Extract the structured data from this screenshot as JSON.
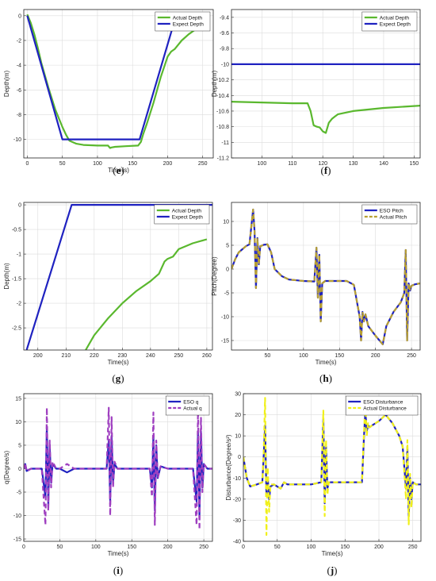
{
  "chart_data": [
    {
      "type": "line",
      "caption": "e",
      "xlabel": "Time(s)",
      "ylabel": "Depth(m)",
      "xlim": [
        -5,
        265
      ],
      "ylim": [
        -11.5,
        0.5
      ],
      "xticks": [
        0,
        50,
        100,
        150,
        200,
        250
      ],
      "yticks": [
        -10,
        -8,
        -6,
        -4,
        -2,
        0
      ],
      "legend_position": "top-right",
      "series": [
        {
          "name": "Actual Depth",
          "color": "#5ab82e",
          "dash": "",
          "x": [
            0,
            5,
            10,
            15,
            20,
            30,
            40,
            50,
            55,
            60,
            70,
            80,
            100,
            115,
            118,
            120,
            125,
            140,
            158,
            162,
            165,
            170,
            180,
            190,
            200,
            205,
            210,
            220,
            230,
            240,
            250,
            258
          ],
          "y": [
            0.1,
            -0.6,
            -1.5,
            -2.6,
            -3.8,
            -5.8,
            -7.6,
            -9.0,
            -9.6,
            -10.1,
            -10.35,
            -10.45,
            -10.5,
            -10.5,
            -10.7,
            -10.65,
            -10.6,
            -10.55,
            -10.5,
            -10.2,
            -9.6,
            -8.8,
            -7.0,
            -5.0,
            -3.3,
            -2.9,
            -2.7,
            -2.0,
            -1.5,
            -1.1,
            -0.8,
            -0.6
          ]
        },
        {
          "name": "Expect Depth",
          "color": "#1f22c0",
          "dash": "",
          "x": [
            0,
            50,
            160,
            212,
            260
          ],
          "y": [
            0,
            -10,
            -10,
            0,
            0
          ]
        }
      ]
    },
    {
      "type": "line",
      "caption": "f",
      "xlabel": "",
      "ylabel": "Depth(m)",
      "xlim": [
        90,
        152
      ],
      "ylim": [
        -11.2,
        -9.3
      ],
      "xticks": [
        100,
        110,
        120,
        130,
        140,
        150
      ],
      "yticks": [
        -11.2,
        -11,
        -10.8,
        -10.6,
        -10.4,
        -10.2,
        -10,
        -9.8,
        -9.6,
        -9.4
      ],
      "legend_position": "top-right",
      "series": [
        {
          "name": "Actual Depth",
          "color": "#5ab82e",
          "dash": "",
          "x": [
            90,
            100,
            110,
            115,
            116,
            117,
            118,
            119,
            120,
            121,
            122,
            123,
            124,
            125,
            130,
            140,
            152
          ],
          "y": [
            -10.48,
            -10.49,
            -10.5,
            -10.5,
            -10.6,
            -10.78,
            -10.8,
            -10.81,
            -10.86,
            -10.88,
            -10.75,
            -10.7,
            -10.67,
            -10.64,
            -10.6,
            -10.56,
            -10.53
          ]
        },
        {
          "name": "Expect Depth",
          "color": "#1f22c0",
          "dash": "",
          "x": [
            90,
            152
          ],
          "y": [
            -10,
            -10
          ]
        }
      ]
    },
    {
      "type": "line",
      "caption": "g",
      "xlabel": "Time(s)",
      "ylabel": "Depth(m)",
      "xlim": [
        195,
        262
      ],
      "ylim": [
        -2.95,
        0.05
      ],
      "xticks": [
        200,
        210,
        220,
        230,
        240,
        250,
        260
      ],
      "yticks": [
        -2.5,
        -2,
        -1.5,
        -1,
        -0.5,
        0
      ],
      "legend_position": "top-right",
      "series": [
        {
          "name": "Actual Depth",
          "color": "#5ab82e",
          "dash": "",
          "x": [
            217,
            220,
            225,
            230,
            235,
            240,
            243,
            245,
            246,
            248,
            250,
            255,
            260
          ],
          "y": [
            -2.95,
            -2.65,
            -2.3,
            -2.0,
            -1.75,
            -1.55,
            -1.4,
            -1.15,
            -1.1,
            -1.05,
            -0.9,
            -0.78,
            -0.7
          ]
        },
        {
          "name": "Expect Depth",
          "color": "#1f22c0",
          "dash": "",
          "x": [
            196,
            212,
            262
          ],
          "y": [
            -2.95,
            0,
            0
          ]
        }
      ]
    },
    {
      "type": "line",
      "caption": "h",
      "xlabel": "Time(s)",
      "ylabel": "Pitch(Degree)",
      "xlim": [
        0,
        262
      ],
      "ylim": [
        -17,
        14
      ],
      "xticks": [
        50,
        100,
        150,
        200,
        250
      ],
      "yticks": [
        -15,
        -10,
        -5,
        0,
        5,
        10
      ],
      "legend_position": "top-right",
      "series": [
        {
          "name": "ESO Pitch",
          "color": "#1f22c0",
          "dash": "",
          "x": [
            0,
            5,
            10,
            20,
            25,
            30,
            32,
            34,
            36,
            38,
            40,
            45,
            50,
            55,
            60,
            70,
            80,
            100,
            115,
            118,
            120,
            122,
            124,
            126,
            130,
            140,
            150,
            160,
            170,
            178,
            180,
            182,
            184,
            186,
            190,
            200,
            210,
            215,
            225,
            235,
            240,
            242,
            244,
            246,
            248,
            250,
            255,
            262
          ],
          "y": [
            0,
            2,
            3.5,
            4.8,
            5.2,
            12.5,
            8,
            -4,
            6.5,
            1,
            4.8,
            5.1,
            5.2,
            3.5,
            0,
            -1.5,
            -2.2,
            -2.5,
            -2.6,
            4.5,
            -6,
            3,
            -11,
            -3,
            -2.5,
            -2.5,
            -2.5,
            -2.5,
            -3.3,
            -10,
            -15,
            -9,
            -11,
            -9.5,
            -12,
            -14,
            -15.8,
            -12,
            -9,
            -7,
            -5,
            4,
            -15,
            -3,
            -4.5,
            -3.5,
            -3.2,
            -3
          ]
        },
        {
          "name": "Actual Pitch",
          "color": "#b8a032",
          "dash": "6,4",
          "x": [
            0,
            5,
            10,
            20,
            25,
            30,
            32,
            34,
            36,
            38,
            40,
            45,
            50,
            55,
            60,
            70,
            80,
            100,
            115,
            118,
            120,
            122,
            124,
            126,
            130,
            140,
            150,
            160,
            170,
            178,
            180,
            182,
            184,
            186,
            190,
            200,
            210,
            215,
            225,
            235,
            240,
            242,
            244,
            246,
            248,
            250,
            255,
            262
          ],
          "y": [
            0,
            2,
            3.5,
            4.8,
            5.2,
            12.5,
            8,
            -4,
            6.5,
            1,
            4.8,
            5.1,
            5.2,
            3.5,
            0,
            -1.5,
            -2.2,
            -2.5,
            -2.6,
            4.5,
            -6,
            3,
            -11,
            -3,
            -2.5,
            -2.5,
            -2.5,
            -2.5,
            -3.3,
            -10,
            -15,
            -9,
            -11,
            -9.5,
            -12,
            -14,
            -15.8,
            -12,
            -9,
            -7,
            -5,
            4,
            -15,
            -3,
            -4.5,
            -3.5,
            -3.2,
            -3
          ]
        }
      ]
    },
    {
      "type": "line",
      "caption": "i",
      "xlabel": "Time(s)",
      "ylabel": "q(Degree/s)",
      "xlim": [
        0,
        262
      ],
      "ylim": [
        -15.5,
        16
      ],
      "xticks": [
        0,
        50,
        100,
        150,
        200,
        250
      ],
      "yticks": [
        -15,
        -10,
        -5,
        0,
        5,
        10,
        15
      ],
      "legend_position": "top-right",
      "series": [
        {
          "name": "ESO q",
          "color": "#1f22c0",
          "dash": "",
          "x": [
            0,
            2,
            4,
            10,
            25,
            30,
            32,
            34,
            36,
            38,
            40,
            45,
            50,
            60,
            70,
            80,
            100,
            115,
            118,
            120,
            122,
            124,
            126,
            130,
            160,
            175,
            178,
            180,
            182,
            184,
            186,
            190,
            200,
            230,
            235,
            240,
            242,
            244,
            246,
            248,
            250,
            255,
            262
          ],
          "y": [
            0,
            1,
            -0.5,
            0,
            0,
            -6,
            9,
            -8,
            5,
            -3,
            1,
            0,
            0,
            -0.8,
            0,
            0,
            0,
            0,
            6,
            -7,
            7,
            -3,
            1,
            0,
            0,
            0,
            -4,
            7,
            -9,
            5,
            -2,
            0.5,
            0,
            0,
            0,
            -7,
            8,
            -10,
            8,
            -4,
            1,
            0,
            0
          ]
        },
        {
          "name": "Actual q",
          "color": "#9f3fc0",
          "dash": "6,4",
          "x": [
            0,
            2,
            4,
            10,
            25,
            30,
            32,
            34,
            36,
            38,
            40,
            45,
            50,
            60,
            70,
            80,
            100,
            115,
            118,
            120,
            122,
            124,
            126,
            130,
            160,
            175,
            178,
            180,
            182,
            184,
            186,
            190,
            200,
            230,
            235,
            240,
            242,
            244,
            246,
            248,
            250,
            255,
            262
          ],
          "y": [
            0,
            1.2,
            -0.6,
            0,
            0,
            -12,
            13,
            -9,
            6,
            -4,
            1.5,
            0,
            0,
            1,
            0,
            0,
            0,
            0,
            13,
            -10,
            11,
            -4,
            1.5,
            0,
            0,
            0,
            -6,
            12,
            -12,
            6,
            -2,
            0.5,
            0,
            0,
            0,
            -12,
            13,
            -13,
            11,
            -5,
            1,
            0,
            0
          ]
        }
      ]
    },
    {
      "type": "line",
      "caption": "j",
      "xlabel": "Time(s)",
      "ylabel": "Disturbance(Degree/s²)",
      "xlim": [
        0,
        262
      ],
      "ylim": [
        -40,
        30
      ],
      "xticks": [
        0,
        50,
        100,
        150,
        200,
        250
      ],
      "yticks": [
        -40,
        -30,
        -20,
        -10,
        0,
        10,
        20,
        30
      ],
      "legend_position": "top-right",
      "series": [
        {
          "name": "ESO Disturbance",
          "color": "#1f22c0",
          "dash": "",
          "x": [
            0,
            5,
            10,
            20,
            28,
            30,
            32,
            34,
            36,
            38,
            40,
            45,
            50,
            55,
            60,
            65,
            70,
            80,
            100,
            115,
            118,
            120,
            122,
            124,
            126,
            130,
            150,
            170,
            175,
            178,
            180,
            182,
            184,
            186,
            190,
            200,
            210,
            220,
            230,
            235,
            240,
            242,
            244,
            246,
            248,
            250,
            255,
            262
          ],
          "y": [
            0,
            -10,
            -14,
            -13,
            -12,
            0,
            15,
            -18,
            -10,
            -20,
            -14,
            -13,
            -14,
            -15,
            -12,
            -13,
            -13,
            -13,
            -13,
            -12,
            18,
            -22,
            5,
            -15,
            -12,
            -12,
            -12,
            -12,
            -12,
            10,
            22,
            12,
            15,
            14,
            15,
            17,
            20,
            16,
            10,
            5,
            -15,
            5,
            -28,
            -10,
            -20,
            -12,
            -13,
            -13
          ]
        },
        {
          "name": "Actual Disturbance",
          "color": "#f0f01a",
          "dash": "6,4",
          "x": [
            0,
            5,
            10,
            20,
            28,
            30,
            32,
            34,
            36,
            38,
            40,
            45,
            50,
            55,
            60,
            65,
            70,
            80,
            100,
            115,
            118,
            120,
            122,
            124,
            126,
            130,
            150,
            170,
            175,
            178,
            180,
            182,
            184,
            186,
            190,
            200,
            210,
            220,
            230,
            235,
            240,
            242,
            244,
            246,
            248,
            250,
            255,
            262
          ],
          "y": [
            0,
            -10,
            -14,
            -13,
            -12,
            2,
            28,
            -37,
            -5,
            -26,
            -13,
            -13,
            -14,
            -15,
            -12,
            -13,
            -13,
            -13,
            -13,
            -12,
            22,
            -28,
            8,
            -18,
            -12,
            -12,
            -12,
            -12,
            -12,
            12,
            26,
            10,
            16,
            14,
            15,
            17,
            20,
            16,
            10,
            5,
            -20,
            8,
            -32,
            -8,
            -24,
            -12,
            -13,
            -13
          ]
        }
      ]
    }
  ]
}
